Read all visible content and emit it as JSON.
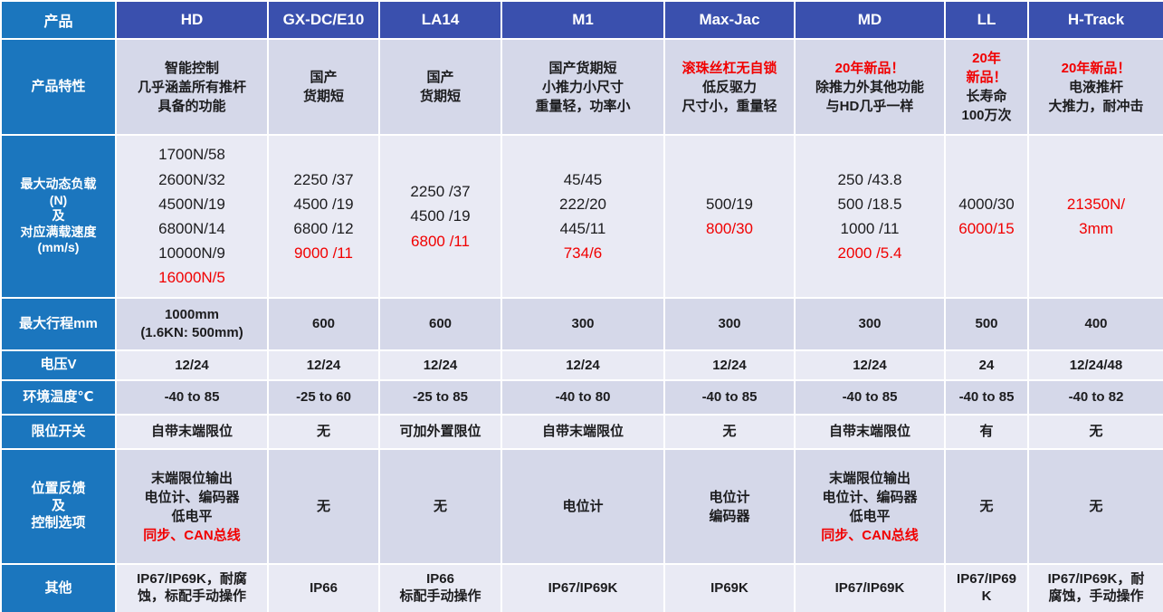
{
  "colors": {
    "header_blue": "#3A50AE",
    "label_blue": "#1B76BE",
    "band_lavender": "#D5D8E9",
    "band_light": "#E9EAF4",
    "accent_red": "#F10000",
    "text_dark": "#1c1c1e"
  },
  "table": {
    "header": {
      "label": "产品",
      "products": [
        "HD",
        "GX-DC/E10",
        "LA14",
        "M1",
        "Max-Jac",
        "MD",
        "LL",
        "H-Track"
      ]
    },
    "rows": [
      {
        "label_lines": [
          "产品特性"
        ],
        "cells": [
          [
            "智能控制",
            "几乎涵盖所有推杆",
            "具备的功能"
          ],
          [
            "国产",
            "货期短"
          ],
          [
            "国产",
            "货期短"
          ],
          [
            "国产货期短",
            "小推力小尺寸",
            "重量轻，功率小"
          ],
          [
            {
              "t": "滚珠丝杠无自锁",
              "red": true
            },
            "低反驱力",
            "尺寸小，重量轻"
          ],
          [
            {
              "t": "20年新品！",
              "red": true,
              "b": true
            },
            "除推力外其他功能",
            "与HD几乎一样"
          ],
          [
            {
              "t": "20年",
              "red": true,
              "b": true
            },
            {
              "t": "新品！",
              "red": true,
              "b": true
            },
            "长寿命",
            "100万次"
          ],
          [
            {
              "t": "20年新品！",
              "red": true,
              "b": true
            },
            "电液推杆",
            "大推力，耐冲击"
          ]
        ]
      },
      {
        "label_lines": [
          "最大动态负载",
          "(N)",
          "及",
          "对应满载速度",
          "(mm/s)"
        ],
        "cells": [
          [
            "1700N/58",
            "2600N/32",
            "4500N/19",
            "6800N/14",
            "10000N/9",
            {
              "t": "16000N/5",
              "red": true
            }
          ],
          [
            "2250 /37",
            "4500 /19",
            "6800 /12",
            {
              "t": "9000 /11",
              "red": true
            }
          ],
          [
            "2250 /37",
            "4500 /19",
            {
              "t": "6800 /11",
              "red": true
            }
          ],
          [
            "45/45",
            "222/20",
            "445/11",
            {
              "t": "734/6",
              "red": true
            }
          ],
          [
            "500/19",
            {
              "t": "800/30",
              "red": true
            }
          ],
          [
            "250 /43.8",
            "500 /18.5",
            "1000 /11",
            {
              "t": "2000 /5.4",
              "red": true
            }
          ],
          [
            "4000/30",
            {
              "t": "6000/15",
              "red": true
            }
          ],
          [
            {
              "t": "21350N/",
              "red": true
            },
            {
              "t": "3mm",
              "red": true
            }
          ]
        ]
      },
      {
        "label_lines": [
          "最大行程mm"
        ],
        "cells": [
          [
            "1000mm",
            "(1.6KN: 500mm)"
          ],
          [
            "600"
          ],
          [
            "600"
          ],
          [
            "300"
          ],
          [
            "300"
          ],
          [
            "300"
          ],
          [
            "500"
          ],
          [
            "400"
          ]
        ]
      },
      {
        "label_lines": [
          "电压V"
        ],
        "cells": [
          [
            "12/24"
          ],
          [
            "12/24"
          ],
          [
            "12/24"
          ],
          [
            "12/24"
          ],
          [
            "12/24"
          ],
          [
            "12/24"
          ],
          [
            "24"
          ],
          [
            "12/24/48"
          ]
        ]
      },
      {
        "label_lines": [
          "环境温度℃"
        ],
        "cells": [
          [
            "-40 to 85"
          ],
          [
            "-25 to 60"
          ],
          [
            "-25 to 85"
          ],
          [
            "-40 to 80"
          ],
          [
            "-40 to 85"
          ],
          [
            "-40 to 85"
          ],
          [
            "-40 to 85"
          ],
          [
            "-40 to 82"
          ]
        ]
      },
      {
        "label_lines": [
          "限位开关"
        ],
        "cells": [
          [
            "自带末端限位"
          ],
          [
            "无"
          ],
          [
            "可加外置限位"
          ],
          [
            "自带末端限位"
          ],
          [
            "无"
          ],
          [
            "自带末端限位"
          ],
          [
            "有"
          ],
          [
            "无"
          ]
        ]
      },
      {
        "label_lines": [
          "位置反馈",
          "及",
          "控制选项"
        ],
        "cells": [
          [
            "末端限位输出",
            "电位计、编码器",
            "低电平",
            {
              "t": "同步、CAN总线",
              "red": true
            }
          ],
          [
            "无"
          ],
          [
            "无"
          ],
          [
            "电位计"
          ],
          [
            "电位计",
            "编码器"
          ],
          [
            "末端限位输出",
            "电位计、编码器",
            "低电平",
            {
              "t": "同步、CAN总线",
              "red": true
            }
          ],
          [
            "无"
          ],
          [
            "无"
          ]
        ]
      },
      {
        "label_lines": [
          "其他"
        ],
        "cells": [
          [
            "IP67/IP69K，耐腐",
            "蚀，标配手动操作"
          ],
          [
            "IP66"
          ],
          [
            "IP66",
            "标配手动操作"
          ],
          [
            "IP67/IP69K"
          ],
          [
            "IP69K"
          ],
          [
            "IP67/IP69K"
          ],
          [
            "IP67/IP69",
            "K"
          ],
          [
            "IP67/IP69K，耐",
            "腐蚀，手动操作"
          ]
        ]
      }
    ]
  }
}
